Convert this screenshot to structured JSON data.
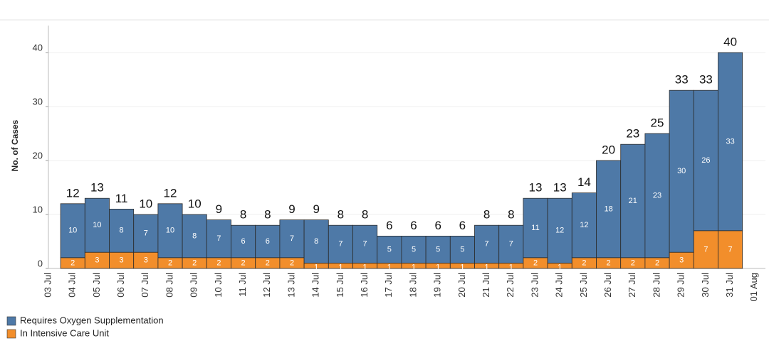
{
  "chart_data": {
    "type": "stacked_bar",
    "y_label": "No. of Cases",
    "categories": [
      "03 Jul",
      "04 Jul",
      "05 Jul",
      "06 Jul",
      "07 Jul",
      "08 Jul",
      "09 Jul",
      "10 Jul",
      "11 Jul",
      "12 Jul",
      "13 Jul",
      "14 Jul",
      "15 Jul",
      "16 Jul",
      "17 Jul",
      "18 Jul",
      "19 Jul",
      "20 Jul",
      "21 Jul",
      "22 Jul",
      "23 Jul",
      "24 Jul",
      "25 Jul",
      "26 Jul",
      "27 Jul",
      "28 Jul",
      "29 Jul",
      "30 Jul",
      "31 Jul",
      "01 Aug"
    ],
    "series": [
      {
        "name": "In Intensive Care Unit",
        "color": "#f28e2b",
        "values": [
          null,
          2,
          3,
          3,
          3,
          2,
          2,
          2,
          2,
          2,
          2,
          1,
          1,
          1,
          1,
          1,
          1,
          1,
          1,
          1,
          2,
          1,
          2,
          2,
          2,
          2,
          3,
          7,
          7,
          null
        ]
      },
      {
        "name": "Requires Oxygen Supplementation",
        "color": "#4e79a7",
        "values": [
          null,
          10,
          10,
          8,
          7,
          10,
          8,
          7,
          6,
          6,
          7,
          8,
          7,
          7,
          5,
          5,
          5,
          5,
          7,
          7,
          11,
          12,
          12,
          18,
          21,
          23,
          30,
          26,
          33,
          null
        ]
      }
    ],
    "totals": [
      null,
      12,
      13,
      11,
      10,
      12,
      10,
      9,
      8,
      8,
      9,
      9,
      8,
      8,
      6,
      6,
      6,
      6,
      8,
      8,
      13,
      13,
      14,
      20,
      23,
      25,
      33,
      33,
      40,
      null
    ],
    "legend_order": [
      1,
      0
    ],
    "ylim": [
      0,
      45
    ],
    "yticks": [
      0,
      10,
      20,
      30,
      40
    ],
    "grid": true
  }
}
